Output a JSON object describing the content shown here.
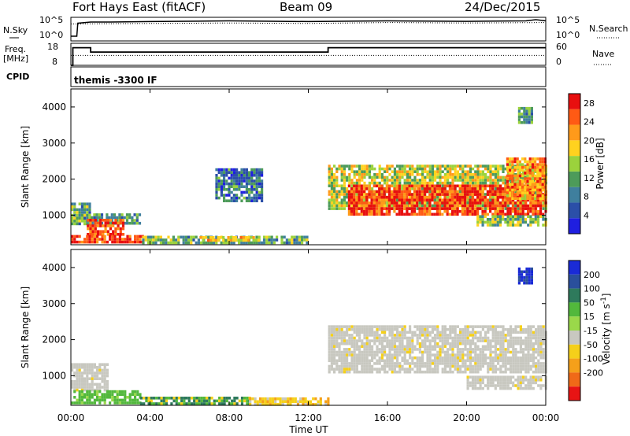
{
  "header": {
    "station": "Fort Hays East (fitACF)",
    "beam": "Beam 09",
    "date": "24/Dec/2015"
  },
  "side_labels": {
    "nsky": "N.Sky",
    "nsearch": "N.Search",
    "freq": "Freq.",
    "mhz": "[MHz]",
    "nave": "Nave",
    "cpid": "CPID",
    "cpid_name": "themis -3300 IF"
  },
  "colors": {
    "power_scale": [
      "#1f1fe0",
      "#2b4fa8",
      "#3f7f9e",
      "#4d9b5a",
      "#9bd23c",
      "#ffd21f",
      "#ff9a1a",
      "#ff5a14",
      "#e80f0f"
    ],
    "velocity_scale": [
      "#1a2bd6",
      "#2a4f9c",
      "#2e7a5c",
      "#52b83c",
      "#9ad84a",
      "#c8c8c0",
      "#f5d01a",
      "#f5a01a",
      "#f06a18",
      "#e81414"
    ],
    "groundscatter": "#c8c8c0"
  },
  "chart_data": [
    {
      "type": "line",
      "panel": "noise",
      "y_ticks": [
        "10^5",
        "10^0"
      ],
      "y_ticks_right": [
        "10^5",
        "10^0"
      ],
      "series": [
        {
          "name": "N.Sky",
          "style": "solid",
          "x": [
            0.0,
            0.3,
            0.35,
            1.0,
            2.0,
            4.0,
            8.0,
            12.0,
            16.0,
            20.0,
            23.0,
            23.5,
            24.0
          ],
          "y": [
            0.2,
            0.2,
            0.75,
            0.8,
            0.8,
            0.82,
            0.85,
            0.82,
            0.85,
            0.83,
            0.85,
            0.9,
            0.85
          ]
        },
        {
          "name": "N.Search",
          "style": "dotted",
          "x": [
            0.0,
            4.0,
            8.0,
            12.0,
            16.0,
            20.0,
            24.0
          ],
          "y": [
            0.72,
            0.74,
            0.76,
            0.74,
            0.78,
            0.76,
            0.78
          ]
        }
      ]
    },
    {
      "type": "line",
      "panel": "frequency_nave",
      "y_ticks_left": [
        "18",
        "8"
      ],
      "y_ticks_right": [
        "60",
        "0"
      ],
      "series": [
        {
          "name": "Freq.",
          "unit": "MHz",
          "x": [
            0.0,
            0.1,
            0.1,
            1.0,
            1.0,
            13.0,
            13.0,
            24.0
          ],
          "y": [
            8,
            8,
            16,
            16,
            14,
            14,
            16,
            16
          ]
        },
        {
          "name": "Nave",
          "style": "dotted",
          "x": [
            0.0,
            1.0,
            13.0,
            24.0
          ],
          "y": [
            27,
            27,
            27,
            27
          ]
        }
      ]
    },
    {
      "type": "heatmap",
      "panel": "power",
      "ylabel": "Slant Range [km]",
      "xlim": [
        0,
        24
      ],
      "ylim": [
        180,
        4500
      ],
      "x_ticks": [
        "00:00",
        "04:00",
        "08:00",
        "12:00",
        "16:00",
        "20:00",
        "00:00"
      ],
      "y_ticks": [
        1000,
        2000,
        3000,
        4000
      ],
      "colorbar": {
        "label": "Power [dB]",
        "ticks": [
          4,
          8,
          12,
          16,
          20,
          24,
          28
        ],
        "range": [
          0,
          30
        ]
      },
      "regions": [
        {
          "t0": 0.0,
          "t1": 1.0,
          "r0": 750,
          "r1": 1350,
          "level": 12
        },
        {
          "t0": 1.0,
          "t1": 3.5,
          "r0": 800,
          "r1": 1050,
          "level": 10
        },
        {
          "t0": 0.8,
          "t1": 2.6,
          "r0": 500,
          "r1": 900,
          "level": 26
        },
        {
          "t0": 0.0,
          "t1": 3.6,
          "r0": 280,
          "r1": 450,
          "level": 27
        },
        {
          "t0": 3.6,
          "t1": 12.0,
          "r0": 250,
          "r1": 430,
          "level": 12
        },
        {
          "t0": 6.5,
          "t1": 9.5,
          "r0": 300,
          "r1": 420,
          "level": 18
        },
        {
          "t0": 13.0,
          "t1": 24.0,
          "r0": 1200,
          "r1": 2400,
          "level": 16
        },
        {
          "t0": 14.0,
          "t1": 24.0,
          "r0": 1050,
          "r1": 1850,
          "level": 27
        },
        {
          "t0": 20.5,
          "t1": 24.0,
          "r0": 750,
          "r1": 1000,
          "level": 14
        },
        {
          "t0": 22.0,
          "t1": 24.0,
          "r0": 1500,
          "r1": 2600,
          "level": 22
        },
        {
          "t0": 22.6,
          "t1": 23.3,
          "r0": 3600,
          "r1": 4000,
          "level": 10
        },
        {
          "t0": 7.3,
          "t1": 9.7,
          "r0": 1400,
          "r1": 2300,
          "level": 8
        }
      ]
    },
    {
      "type": "heatmap",
      "panel": "velocity",
      "ylabel": "Slant Range [km]",
      "xlabel": "Time UT",
      "xlim": [
        0,
        24
      ],
      "ylim": [
        180,
        4500
      ],
      "x_ticks": [
        "00:00",
        "04:00",
        "08:00",
        "12:00",
        "16:00",
        "20:00",
        "00:00"
      ],
      "y_ticks": [
        1000,
        2000,
        3000,
        4000
      ],
      "colorbar": {
        "label": "Velocity [m s-1]",
        "ticks": [
          "200",
          "100",
          "50",
          "15",
          "-15",
          "-50",
          "-100",
          "-200"
        ]
      },
      "regions": [
        {
          "t0": 0.0,
          "t1": 1.8,
          "r0": 600,
          "r1": 1350,
          "class": "gs"
        },
        {
          "t0": 0.0,
          "t1": 3.5,
          "r0": 250,
          "r1": 600,
          "class": "green"
        },
        {
          "t0": 3.5,
          "t1": 9.0,
          "r0": 230,
          "r1": 420,
          "class": "green_dark"
        },
        {
          "t0": 9.0,
          "t1": 13.0,
          "r0": 230,
          "r1": 400,
          "class": "orange"
        },
        {
          "t0": 13.0,
          "t1": 24.0,
          "r0": 1100,
          "r1": 2400,
          "class": "gs"
        },
        {
          "t0": 20.0,
          "t1": 24.0,
          "r0": 650,
          "r1": 1000,
          "class": "gs"
        },
        {
          "t0": 22.6,
          "t1": 23.3,
          "r0": 3600,
          "r1": 4000,
          "class": "blue"
        }
      ]
    }
  ]
}
